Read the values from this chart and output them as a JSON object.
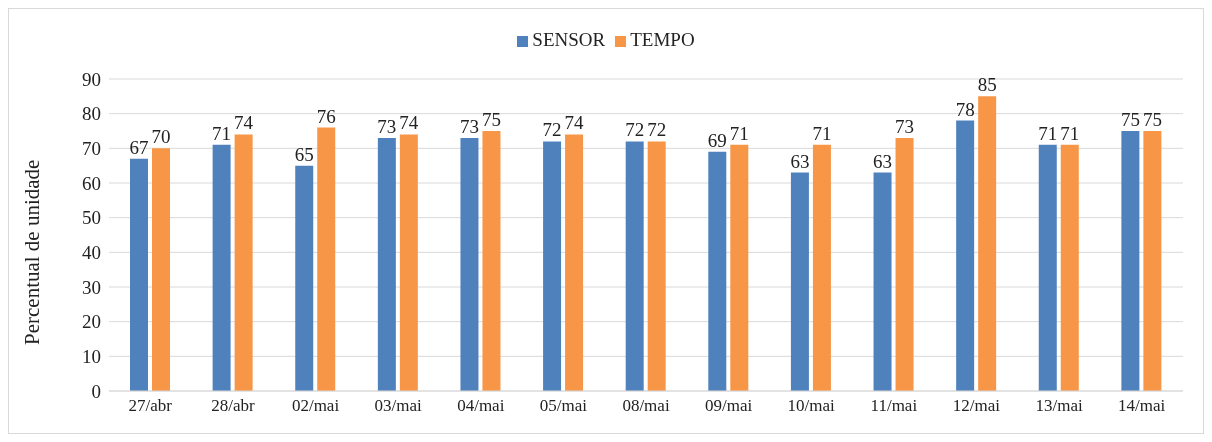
{
  "chart_data": {
    "type": "bar",
    "ylabel": "Percentual de unidade",
    "categories": [
      "27/abr",
      "28/abr",
      "02/mai",
      "03/mai",
      "04/mai",
      "05/mai",
      "08/mai",
      "09/mai",
      "10/mai",
      "11/mai",
      "12/mai",
      "13/mai",
      "14/mai"
    ],
    "series": [
      {
        "name": "SENSOR",
        "color": "#4f81bd",
        "values": [
          67,
          71,
          65,
          73,
          73,
          72,
          72,
          69,
          63,
          63,
          78,
          71,
          75
        ]
      },
      {
        "name": "TEMPO",
        "color": "#f79646",
        "values": [
          70,
          74,
          76,
          74,
          75,
          74,
          72,
          71,
          71,
          73,
          85,
          71,
          75
        ]
      }
    ],
    "ylim": [
      0,
      90
    ],
    "yticks": [
      0,
      10,
      20,
      30,
      40,
      50,
      60,
      70,
      80,
      90
    ],
    "grid": "y",
    "legend": "top",
    "data_labels": true
  }
}
